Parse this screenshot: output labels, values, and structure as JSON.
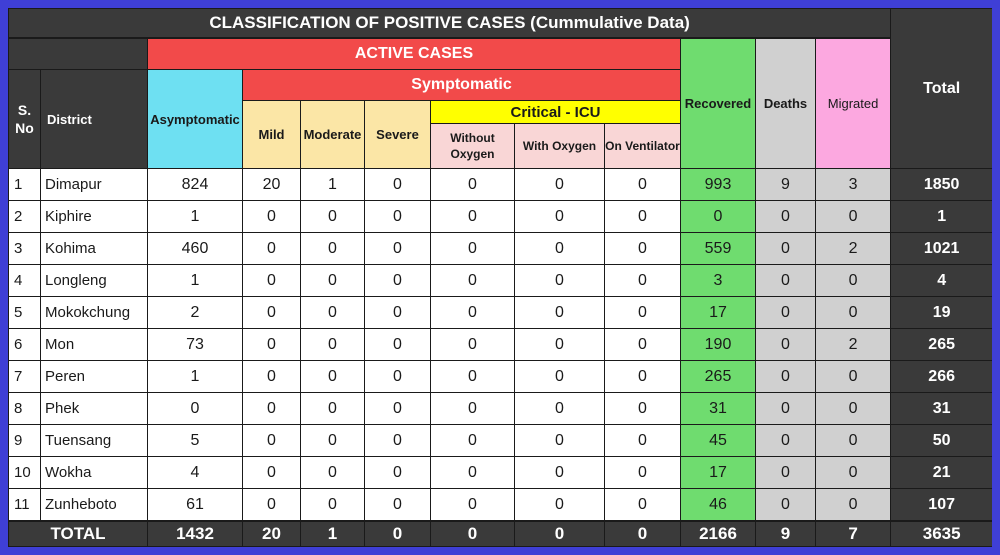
{
  "title": "CLASSIFICATION OF POSITIVE CASES (Cummulative Data)",
  "headers": {
    "sno": "S. No",
    "district": "District",
    "active_cases": "ACTIVE CASES",
    "symptomatic": "Symptomatic",
    "asymptomatic": "Asymptomatic",
    "mild": "Mild",
    "moderate": "Moderate",
    "severe": "Severe",
    "critical_icu": "Critical - ICU",
    "without_oxygen": "Without Oxygen",
    "with_oxygen": "With Oxygen",
    "on_ventilator": "On Ventilator",
    "recovered": "Recovered",
    "deaths": "Deaths",
    "migrated": "Migrated",
    "total": "Total"
  },
  "rows": [
    {
      "sno": "1",
      "district": "Dimapur",
      "asymptomatic": "824",
      "mild": "20",
      "moderate": "1",
      "severe": "0",
      "without_oxygen": "0",
      "with_oxygen": "0",
      "on_ventilator": "0",
      "recovered": "993",
      "deaths": "9",
      "migrated": "3",
      "total": "1850"
    },
    {
      "sno": "2",
      "district": "Kiphire",
      "asymptomatic": "1",
      "mild": "0",
      "moderate": "0",
      "severe": "0",
      "without_oxygen": "0",
      "with_oxygen": "0",
      "on_ventilator": "0",
      "recovered": "0",
      "deaths": "0",
      "migrated": "0",
      "total": "1"
    },
    {
      "sno": "3",
      "district": "Kohima",
      "asymptomatic": "460",
      "mild": "0",
      "moderate": "0",
      "severe": "0",
      "without_oxygen": "0",
      "with_oxygen": "0",
      "on_ventilator": "0",
      "recovered": "559",
      "deaths": "0",
      "migrated": "2",
      "total": "1021"
    },
    {
      "sno": "4",
      "district": "Longleng",
      "asymptomatic": "1",
      "mild": "0",
      "moderate": "0",
      "severe": "0",
      "without_oxygen": "0",
      "with_oxygen": "0",
      "on_ventilator": "0",
      "recovered": "3",
      "deaths": "0",
      "migrated": "0",
      "total": "4"
    },
    {
      "sno": "5",
      "district": "Mokokchung",
      "asymptomatic": "2",
      "mild": "0",
      "moderate": "0",
      "severe": "0",
      "without_oxygen": "0",
      "with_oxygen": "0",
      "on_ventilator": "0",
      "recovered": "17",
      "deaths": "0",
      "migrated": "0",
      "total": "19"
    },
    {
      "sno": "6",
      "district": "Mon",
      "asymptomatic": "73",
      "mild": "0",
      "moderate": "0",
      "severe": "0",
      "without_oxygen": "0",
      "with_oxygen": "0",
      "on_ventilator": "0",
      "recovered": "190",
      "deaths": "0",
      "migrated": "2",
      "total": "265"
    },
    {
      "sno": "7",
      "district": "Peren",
      "asymptomatic": "1",
      "mild": "0",
      "moderate": "0",
      "severe": "0",
      "without_oxygen": "0",
      "with_oxygen": "0",
      "on_ventilator": "0",
      "recovered": "265",
      "deaths": "0",
      "migrated": "0",
      "total": "266"
    },
    {
      "sno": "8",
      "district": "Phek",
      "asymptomatic": "0",
      "mild": "0",
      "moderate": "0",
      "severe": "0",
      "without_oxygen": "0",
      "with_oxygen": "0",
      "on_ventilator": "0",
      "recovered": "31",
      "deaths": "0",
      "migrated": "0",
      "total": "31"
    },
    {
      "sno": "9",
      "district": "Tuensang",
      "asymptomatic": "5",
      "mild": "0",
      "moderate": "0",
      "severe": "0",
      "without_oxygen": "0",
      "with_oxygen": "0",
      "on_ventilator": "0",
      "recovered": "45",
      "deaths": "0",
      "migrated": "0",
      "total": "50"
    },
    {
      "sno": "10",
      "district": "Wokha",
      "asymptomatic": "4",
      "mild": "0",
      "moderate": "0",
      "severe": "0",
      "without_oxygen": "0",
      "with_oxygen": "0",
      "on_ventilator": "0",
      "recovered": "17",
      "deaths": "0",
      "migrated": "0",
      "total": "21"
    },
    {
      "sno": "11",
      "district": "Zunheboto",
      "asymptomatic": "61",
      "mild": "0",
      "moderate": "0",
      "severe": "0",
      "without_oxygen": "0",
      "with_oxygen": "0",
      "on_ventilator": "0",
      "recovered": "46",
      "deaths": "0",
      "migrated": "0",
      "total": "107"
    }
  ],
  "totals": {
    "label": "TOTAL",
    "asymptomatic": "1432",
    "mild": "20",
    "moderate": "1",
    "severe": "0",
    "without_oxygen": "0",
    "with_oxygen": "0",
    "on_ventilator": "0",
    "recovered": "2166",
    "deaths": "9",
    "migrated": "7",
    "total": "3635"
  },
  "colors": {
    "background_border": "#3f3fd6",
    "dark_header": "#3a3a3a",
    "active_cases": "#f24a4a",
    "asymptomatic": "#6ee0f2",
    "symptomatic_sub": "#fbe6a6",
    "critical_icu": "#ffff00",
    "icu_sub": "#f9d6d6",
    "recovered": "#6fdc6f",
    "deaths": "#d0d0d0",
    "migrated": "#fca8e0"
  }
}
